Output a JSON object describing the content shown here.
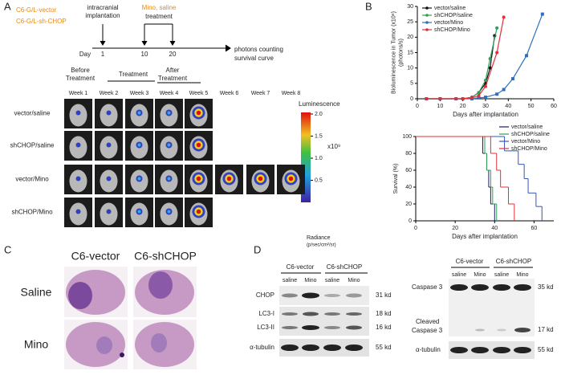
{
  "panel_labels": [
    "A",
    "B",
    "C",
    "D"
  ],
  "panel_a": {
    "groups": [
      "C6-G/L-vector",
      "C6-G/L-sh-CHOP"
    ],
    "implant": [
      "intracranial",
      "implantation"
    ],
    "treatment": [
      "Mino, saline",
      "treatment"
    ],
    "day_label": "Day",
    "days": [
      1,
      10,
      20
    ],
    "outcome": [
      "photons counting",
      "survival curve"
    ],
    "phases": [
      [
        "Before",
        "Treatment"
      ],
      [
        "Treatment"
      ],
      [
        "After",
        "Treatment"
      ]
    ],
    "weeks": [
      "Week 1",
      "Week 2",
      "Week 3",
      "Week 4",
      "Week 5",
      "Week 6",
      "Week 7",
      "Week 8"
    ],
    "rows": [
      "vector/saline",
      "shCHOP/saline",
      "vector/Mino",
      "shCHOP/Mino"
    ],
    "colorbar": {
      "title": "Luminescence",
      "ticks": [
        {
          "value": 2,
          "label": "2.0"
        },
        1.5,
        {
          "value": 1,
          "label": "1.0"
        },
        0.5
      ],
      "scale": "x10⁹",
      "unit": [
        "Radiance",
        "(p/sec/cm²/sr)"
      ]
    }
  },
  "chart_data": [
    {
      "type": "line",
      "ylabel": [
        "Bioluminescence in Tumor (x10⁶)",
        "(photons/s)"
      ],
      "xlabel": "Days after implantation",
      "xlim": [
        0,
        60
      ],
      "xticks": [
        0,
        10,
        20,
        30,
        40,
        50,
        60
      ],
      "ylim": [
        0,
        30
      ],
      "yticks": [
        0,
        5,
        10,
        15,
        20,
        25,
        30
      ],
      "legend": "upper-left",
      "series": [
        {
          "name": "vector/saline",
          "color": "#111111",
          "x": [
            4,
            10,
            17,
            20,
            24,
            27,
            30,
            32,
            34
          ],
          "values": [
            0,
            0,
            0,
            0,
            0.5,
            2,
            5,
            10,
            20.5
          ]
        },
        {
          "name": "shCHOP/saline",
          "color": "#2aa05a",
          "x": [
            4,
            10,
            17,
            20,
            24,
            27,
            30,
            32,
            35
          ],
          "values": [
            0,
            0,
            0,
            0,
            0.5,
            2,
            6,
            13,
            23
          ]
        },
        {
          "name": "vector/Mino",
          "color": "#2f6fbf",
          "x": [
            4,
            10,
            17,
            20,
            24,
            27,
            30,
            35,
            38,
            42,
            48,
            55
          ],
          "values": [
            0,
            0,
            0,
            0,
            0,
            0.3,
            0.5,
            1.5,
            3,
            6.5,
            14,
            27.5
          ]
        },
        {
          "name": "shCHOP/Mino",
          "color": "#e0303a",
          "x": [
            4,
            10,
            17,
            20,
            24,
            27,
            30,
            35,
            38
          ],
          "values": [
            0,
            0,
            0,
            0,
            0.3,
            1,
            4,
            15,
            26.5
          ]
        }
      ]
    },
    {
      "type": "step",
      "ylabel": "Survival (%)",
      "xlabel": "Days after implantation",
      "xlim": [
        0,
        70
      ],
      "xticks": [
        0,
        20,
        40,
        60
      ],
      "ylim": [
        0,
        100
      ],
      "yticks": [
        0,
        20,
        40,
        60,
        80,
        100
      ],
      "legend": "upper-right",
      "series": [
        {
          "name": "vector/saline",
          "color": "#1a1a60",
          "x": [
            0,
            34,
            36,
            37,
            38,
            40
          ],
          "values": [
            100,
            80,
            60,
            40,
            20,
            0
          ]
        },
        {
          "name": "shCHOP/saline",
          "color": "#2aa05a",
          "x": [
            0,
            35,
            36,
            38,
            39,
            41
          ],
          "values": [
            100,
            80,
            60,
            40,
            20,
            0
          ]
        },
        {
          "name": "vector/Mino",
          "color": "#3355bb",
          "x": [
            0,
            45,
            52,
            55,
            57,
            61,
            64
          ],
          "values": [
            100,
            83,
            67,
            50,
            33,
            17,
            0
          ]
        },
        {
          "name": "shCHOP/Mino",
          "color": "#e0303a",
          "x": [
            0,
            38,
            41,
            43,
            47,
            50
          ],
          "values": [
            100,
            80,
            60,
            40,
            20,
            0
          ]
        }
      ]
    }
  ],
  "panel_c": {
    "columns": [
      "C6-vector",
      "C6-shCHOP"
    ],
    "rows": [
      "Saline",
      "Mino"
    ]
  },
  "panel_d": {
    "left": {
      "groups": [
        "C6-vector",
        "C6-shCHOP"
      ],
      "lanes": [
        "saline",
        "Mino",
        "saline",
        "Mino"
      ],
      "rows": [
        "CHOP",
        "LC3-I",
        "LC3-II",
        "α-tubulin"
      ],
      "sizes": [
        "31 kd",
        "18 kd",
        "16 kd",
        "55 kd"
      ]
    },
    "right": {
      "groups": [
        "C6-vector",
        "C6-shCHOP"
      ],
      "lanes": [
        "saline",
        "Mino",
        "saline",
        "Mino"
      ],
      "rows": [
        "Caspase 3",
        [
          "Cleaved",
          "Caspase 3"
        ],
        "α-tubulin"
      ],
      "sizes": [
        "35 kd",
        "17 kd",
        "55 kd"
      ]
    }
  }
}
